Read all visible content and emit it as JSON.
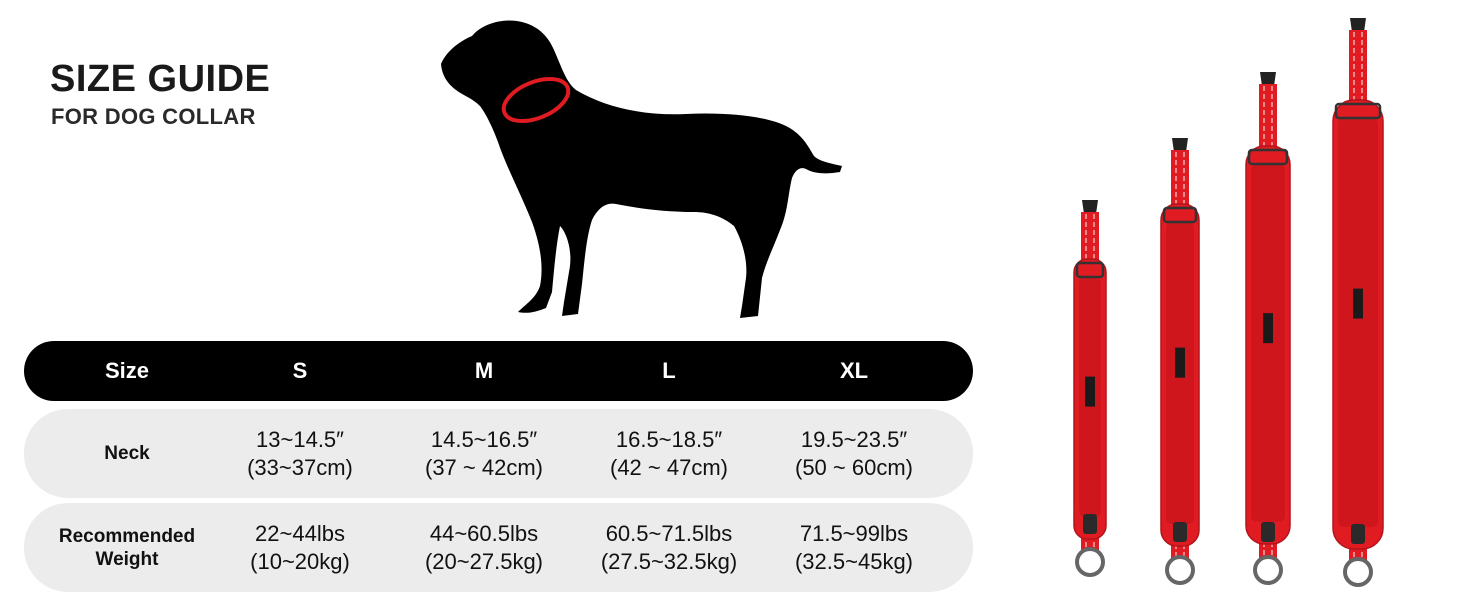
{
  "heading": {
    "title": "SIZE GUIDE",
    "subtitle": "FOR DOG COLLAR"
  },
  "colors": {
    "collar_red": "#e01b22",
    "header_bg": "#000000",
    "row_bg": "#ececec"
  },
  "table": {
    "header": [
      "Size",
      "S",
      "M",
      "L",
      "XL"
    ],
    "rows": [
      {
        "label": [
          "Neck"
        ],
        "values": [
          [
            "13~14.5″",
            "(33~37cm)"
          ],
          [
            "14.5~16.5″",
            "(37 ~ 42cm)"
          ],
          [
            "16.5~18.5″",
            "(42 ~ 47cm)"
          ],
          [
            "19.5~23.5″",
            "(50 ~ 60cm)"
          ]
        ]
      },
      {
        "label": [
          "Recommended",
          "Weight"
        ],
        "values": [
          [
            "22~44lbs",
            "(10~20kg)"
          ],
          [
            "44~60.5lbs",
            "(20~27.5kg)"
          ],
          [
            "60.5~71.5lbs",
            "(27.5~32.5kg)"
          ],
          [
            "71.5~99lbs",
            "(32.5~45kg)"
          ]
        ]
      }
    ]
  },
  "icons": [
    "dog-silhouette-icon",
    "collar-s-icon",
    "collar-m-icon",
    "collar-l-icon",
    "collar-xl-icon"
  ]
}
